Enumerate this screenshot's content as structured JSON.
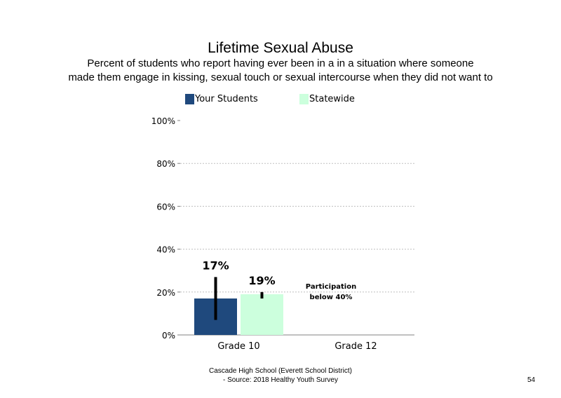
{
  "chart_data": {
    "type": "bar",
    "title": "Lifetime Sexual Abuse",
    "subtitle_lines": [
      "Percent of students who report having ever been in a in a situation where someone",
      "made them engage in kissing, sexual touch or sexual intercourse when they did not want to"
    ],
    "categories": [
      "Grade 10",
      "Grade 12"
    ],
    "series": [
      {
        "name": "Your Students",
        "color": "#1f497d",
        "values": [
          17,
          null
        ],
        "data_labels": [
          "17%",
          ""
        ],
        "error_low": [
          7,
          null
        ],
        "error_high": [
          27,
          null
        ]
      },
      {
        "name": "Statewide",
        "color": "#ccffdd",
        "values": [
          19,
          null
        ],
        "data_labels": [
          "19%",
          ""
        ],
        "error_low": [
          17,
          null
        ],
        "error_high": [
          20,
          null
        ]
      }
    ],
    "yticks": [
      "0%",
      "20%",
      "40%",
      "60%",
      "80%",
      "100%"
    ],
    "ylim": [
      0,
      100
    ],
    "annotations": [
      "Participation\nbelow 40%"
    ],
    "gridlines": true,
    "legend_position": "top"
  },
  "footer": {
    "line1": "Cascade High School (Everett School District)",
    "line2": "- Source: 2018 Healthy Youth Survey",
    "page_number": "54"
  }
}
